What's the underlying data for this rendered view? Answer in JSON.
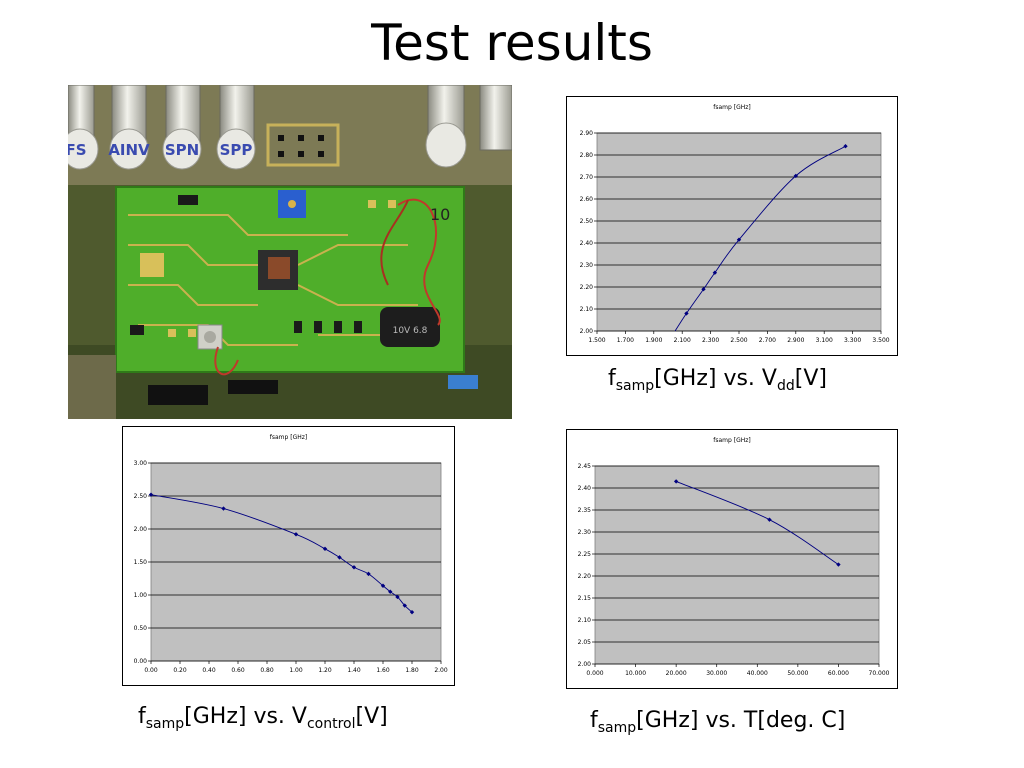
{
  "slide": {
    "title": "Test results"
  },
  "photo": {
    "labels": [
      "FS",
      "AINV",
      "SPN",
      "SPP"
    ],
    "capacitor_text": "10"
  },
  "captions": {
    "vdd": {
      "main": "f",
      "sub1": "samp",
      "mid": "[GHz] vs. V",
      "sub2": "dd",
      "end": "[V]"
    },
    "vctl": {
      "main": "f",
      "sub1": "samp",
      "mid": "[GHz] vs. V",
      "sub2": "control",
      "end": "[V]"
    },
    "temp": {
      "main": "f",
      "sub1": "samp",
      "mid": "[GHz] vs. T[deg. C]"
    }
  },
  "chart_data": [
    {
      "id": "vdd",
      "type": "line",
      "title": "fsamp [GHz]",
      "xlabel": "",
      "ylabel": "",
      "xlim": [
        1.5,
        3.5
      ],
      "ylim": [
        2.0,
        2.9
      ],
      "xticks": [
        "1.500",
        "1.700",
        "1.900",
        "2.100",
        "2.300",
        "2.500",
        "2.700",
        "2.900",
        "3.100",
        "3.300",
        "3.500"
      ],
      "yticks": [
        "2.00",
        "2.10",
        "2.20",
        "2.30",
        "2.40",
        "2.50",
        "2.60",
        "2.70",
        "2.80",
        "2.90"
      ],
      "grid": true,
      "plot_bg": "#c0c0c0",
      "line_color": "#000080",
      "series": [
        {
          "x": [
            2.05,
            2.13,
            2.25,
            2.33,
            2.5,
            2.9,
            3.25
          ],
          "y": [
            2.0,
            2.08,
            2.19,
            2.265,
            2.415,
            2.705,
            2.84
          ]
        }
      ],
      "markers": [
        false,
        true,
        true,
        true,
        true,
        true,
        true
      ]
    },
    {
      "id": "vctl",
      "type": "line",
      "title": "fsamp [GHz]",
      "xlabel": "",
      "ylabel": "",
      "xlim": [
        0,
        2
      ],
      "ylim": [
        0,
        3
      ],
      "xticks": [
        "0.00",
        "0.20",
        "0.40",
        "0.60",
        "0.80",
        "1.00",
        "1.20",
        "1.40",
        "1.60",
        "1.80",
        "2.00"
      ],
      "yticks": [
        "0.00",
        "0.50",
        "1.00",
        "1.50",
        "2.00",
        "2.50",
        "3.00"
      ],
      "grid": true,
      "plot_bg": "#c0c0c0",
      "line_color": "#000080",
      "series": [
        {
          "x": [
            0.0,
            0.5,
            1.0,
            1.2,
            1.3,
            1.4,
            1.5,
            1.6,
            1.65,
            1.7,
            1.75,
            1.8
          ],
          "y": [
            2.52,
            2.31,
            1.92,
            1.7,
            1.57,
            1.42,
            1.32,
            1.14,
            1.05,
            0.97,
            0.84,
            0.74
          ]
        }
      ],
      "markers": [
        true,
        true,
        true,
        true,
        true,
        true,
        true,
        true,
        true,
        true,
        true,
        true
      ]
    },
    {
      "id": "temp",
      "type": "line",
      "title": "fsamp [GHz]",
      "xlabel": "",
      "ylabel": "",
      "xlim": [
        0,
        70
      ],
      "ylim": [
        2.0,
        2.45
      ],
      "xticks": [
        "0.000",
        "10.000",
        "20.000",
        "30.000",
        "40.000",
        "50.000",
        "60.000",
        "70.000"
      ],
      "yticks": [
        "2.00",
        "2.05",
        "2.10",
        "2.15",
        "2.20",
        "2.25",
        "2.30",
        "2.35",
        "2.40",
        "2.45"
      ],
      "grid": true,
      "plot_bg": "#c0c0c0",
      "line_color": "#000080",
      "series": [
        {
          "x": [
            20,
            43,
            60
          ],
          "y": [
            2.415,
            2.328,
            2.226
          ]
        }
      ],
      "markers": [
        true,
        true,
        true
      ]
    }
  ]
}
